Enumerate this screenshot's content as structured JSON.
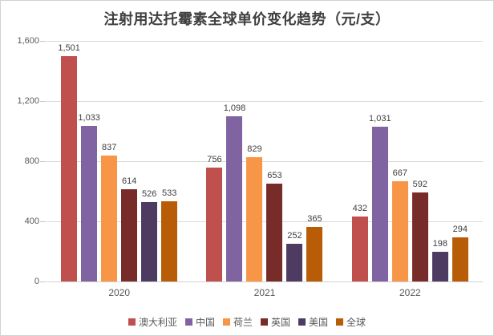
{
  "title": "注射用达托霉素全球单价变化趋势（元/支）",
  "chart_data": {
    "type": "bar",
    "title": "注射用达托霉素全球单价变化趋势（元/支）",
    "xlabel": "",
    "ylabel": "",
    "categories": [
      "2020",
      "2021",
      "2022"
    ],
    "series": [
      {
        "name": "澳大利亚",
        "color": "#C0504D",
        "values": [
          1501,
          756,
          432
        ],
        "labels": [
          "1,501",
          "756",
          "432"
        ]
      },
      {
        "name": "中国",
        "color": "#8064A2",
        "values": [
          1033,
          1098,
          1031
        ],
        "labels": [
          "1,033",
          "1,098",
          "1,031"
        ]
      },
      {
        "name": "荷兰",
        "color": "#F79646",
        "values": [
          837,
          829,
          667
        ],
        "labels": [
          "837",
          "829",
          "667"
        ]
      },
      {
        "name": "英国",
        "color": "#772C2A",
        "values": [
          614,
          653,
          592
        ],
        "labels": [
          "614",
          "653",
          "592"
        ]
      },
      {
        "name": "美国",
        "color": "#4D3B62",
        "values": [
          526,
          252,
          198
        ],
        "labels": [
          "526",
          "252",
          "198"
        ]
      },
      {
        "name": "全球",
        "color": "#B85C08",
        "values": [
          533,
          365,
          294
        ],
        "labels": [
          "533",
          "365",
          "294"
        ]
      }
    ],
    "ylim": [
      0,
      1600
    ],
    "yticks": [
      "0",
      "400",
      "800",
      "1,200",
      "1,600"
    ],
    "grid": true,
    "legend_position": "bottom",
    "colors": {
      "title_text": "#404040",
      "data_label_text": "#404040",
      "axis_text": "#595959",
      "gridline": "#d9d9d9",
      "frame_border": "#d3d3d3",
      "background": "#ffffff"
    }
  }
}
